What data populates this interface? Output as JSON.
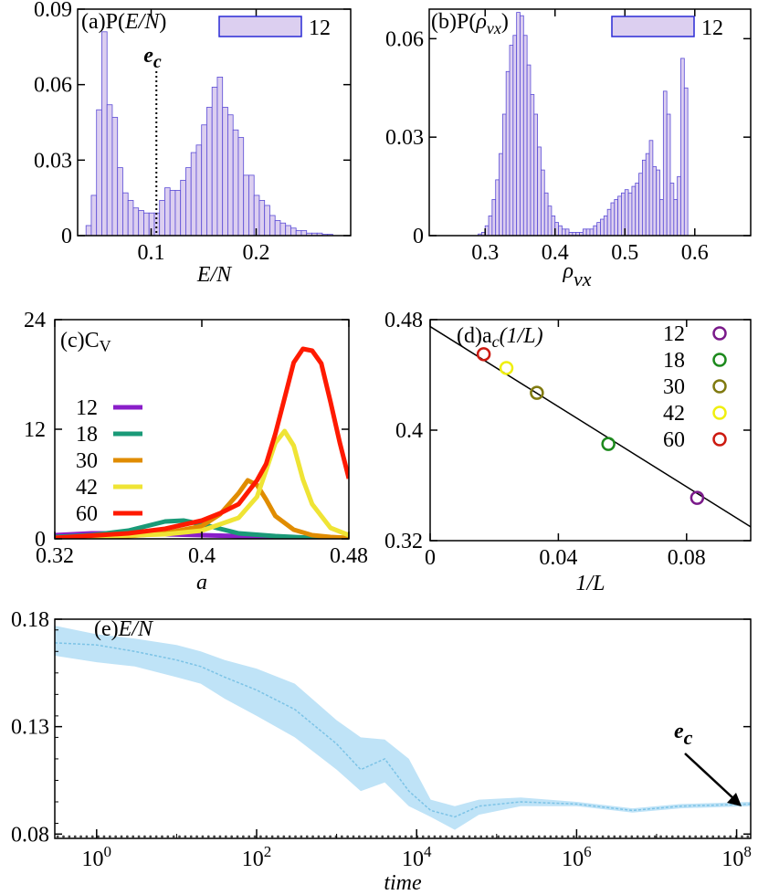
{
  "chart_data": [
    {
      "panel": "a",
      "type": "bar",
      "title_prefix": "(a)P(",
      "title_var": "E/N",
      "title_suffix": ")",
      "xlabel": "E/N",
      "xlim": [
        0.03,
        0.29
      ],
      "ylim": [
        0,
        0.09
      ],
      "xticks": [
        "0.1",
        "0.2"
      ],
      "yticks": [
        "0",
        "0.03",
        "0.06",
        "0.09"
      ],
      "legend": "12",
      "annotation": "e",
      "annotation_sub": "c",
      "ec_value": 0.105,
      "bin_start": 0.038,
      "bin_width": 0.005,
      "values": [
        0.004,
        0.016,
        0.05,
        0.081,
        0.052,
        0.047,
        0.027,
        0.017,
        0.014,
        0.011,
        0.01,
        0.009,
        0.009,
        0.009,
        0.014,
        0.019,
        0.018,
        0.018,
        0.022,
        0.027,
        0.033,
        0.036,
        0.044,
        0.051,
        0.059,
        0.063,
        0.051,
        0.048,
        0.042,
        0.039,
        0.024,
        0.024,
        0.016,
        0.014,
        0.012,
        0.008,
        0.006,
        0.005,
        0.004,
        0.003,
        0.002,
        0.002,
        0.001,
        0.001,
        0.001,
        0.0005,
        0.0005
      ]
    },
    {
      "panel": "b",
      "type": "bar",
      "title_prefix": "(b)P(",
      "title_var": "ρ",
      "title_sub": "vx",
      "title_suffix": ")",
      "xlabel": "ρ",
      "xlabel_sub": "vx",
      "xlim": [
        0.22,
        0.68
      ],
      "ylim": [
        0,
        0.069
      ],
      "xticks": [
        "0.3",
        "0.4",
        "0.5",
        "0.6"
      ],
      "yticks": [
        "0",
        "0.03",
        "0.06"
      ],
      "legend": "12",
      "bin_start": 0.29,
      "bin_width": 0.005,
      "values": [
        0.0005,
        0.001,
        0.003,
        0.006,
        0.011,
        0.017,
        0.025,
        0.037,
        0.05,
        0.058,
        0.061,
        0.068,
        0.067,
        0.061,
        0.052,
        0.043,
        0.037,
        0.027,
        0.02,
        0.013,
        0.009,
        0.006,
        0.004,
        0.003,
        0.002,
        0.002,
        0.001,
        0.001,
        0.001,
        0.001,
        0.002,
        0.002,
        0.002,
        0.003,
        0.004,
        0.005,
        0.006,
        0.008,
        0.01,
        0.011,
        0.012,
        0.013,
        0.014,
        0.013,
        0.015,
        0.016,
        0.019,
        0.023,
        0.025,
        0.029,
        0.021,
        0.02,
        0.011,
        0.044,
        0.037,
        0.016,
        0.011,
        0.018,
        0.054,
        0.045
      ]
    },
    {
      "panel": "c",
      "type": "line",
      "title": "(c)C",
      "title_sub": "V",
      "xlabel": "a",
      "xlim": [
        0.32,
        0.48
      ],
      "ylim": [
        0,
        24
      ],
      "xticks": [
        "0.32",
        "0.4",
        "0.48"
      ],
      "yticks": [
        "0",
        "12",
        "24"
      ],
      "series": [
        {
          "name": "12",
          "color": "#8a1ec9",
          "x": [
            0.32,
            0.34,
            0.36,
            0.38,
            0.4,
            0.42,
            0.44,
            0.46,
            0.48
          ],
          "y": [
            0.4,
            0.6,
            0.6,
            0.5,
            0.4,
            0.3,
            0.2,
            0.1,
            0.05
          ]
        },
        {
          "name": "18",
          "color": "#1a9a78",
          "x": [
            0.32,
            0.34,
            0.36,
            0.37,
            0.38,
            0.39,
            0.4,
            0.41,
            0.42,
            0.44,
            0.46,
            0.48
          ],
          "y": [
            0.2,
            0.4,
            0.9,
            1.4,
            1.9,
            2.0,
            1.6,
            1.1,
            0.6,
            0.3,
            0.1,
            0.05
          ]
        },
        {
          "name": "30",
          "color": "#e08c00",
          "x": [
            0.32,
            0.36,
            0.38,
            0.4,
            0.41,
            0.42,
            0.425,
            0.43,
            0.435,
            0.44,
            0.45,
            0.46,
            0.47,
            0.48
          ],
          "y": [
            0.1,
            0.3,
            0.6,
            1.4,
            2.7,
            5.0,
            6.4,
            5.9,
            4.3,
            2.5,
            1.0,
            0.4,
            0.2,
            0.1
          ]
        },
        {
          "name": "42",
          "color": "#efe435",
          "x": [
            0.32,
            0.38,
            0.4,
            0.42,
            0.43,
            0.435,
            0.44,
            0.445,
            0.45,
            0.455,
            0.46,
            0.47,
            0.48
          ],
          "y": [
            0.1,
            0.5,
            0.9,
            2.3,
            4.6,
            7.5,
            10.5,
            11.8,
            10.2,
            6.5,
            3.8,
            1.2,
            0.4
          ]
        },
        {
          "name": "60",
          "color": "#ff1a00",
          "x": [
            0.32,
            0.36,
            0.38,
            0.4,
            0.41,
            0.42,
            0.43,
            0.435,
            0.44,
            0.445,
            0.45,
            0.455,
            0.46,
            0.465,
            0.47,
            0.475,
            0.48
          ],
          "y": [
            0.1,
            0.6,
            1.1,
            2.0,
            2.8,
            3.8,
            6.4,
            8.2,
            11.5,
            15.4,
            19.3,
            20.8,
            20.6,
            19.2,
            15.0,
            10.6,
            6.6
          ]
        }
      ]
    },
    {
      "panel": "d",
      "type": "scatter",
      "title": "(d)a",
      "title_sub": "c",
      "title_suffix": "(1/L)",
      "xlabel": "1/L",
      "xlim": [
        0,
        0.1
      ],
      "ylim": [
        0.32,
        0.48
      ],
      "xticks": [
        "0",
        "0.04",
        "0.08"
      ],
      "yticks": [
        "0.32",
        "0.4",
        "0.48"
      ],
      "fit_line": {
        "x": [
          0,
          0.1
        ],
        "y": [
          0.475,
          0.33
        ]
      },
      "series": [
        {
          "name": "12",
          "color": "#7a1a8a",
          "x": 0.0833,
          "y": 0.351
        },
        {
          "name": "18",
          "color": "#1d8a1d",
          "x": 0.0556,
          "y": 0.39
        },
        {
          "name": "30",
          "color": "#807a10",
          "x": 0.0333,
          "y": 0.427
        },
        {
          "name": "42",
          "color": "#efef10",
          "x": 0.0238,
          "y": 0.445
        },
        {
          "name": "60",
          "color": "#cc1a10",
          "x": 0.0167,
          "y": 0.455
        }
      ]
    },
    {
      "panel": "e",
      "type": "area",
      "title_prefix": "(e)",
      "title_var": "E/N",
      "xlabel": "time",
      "xscale": "log",
      "xlim": [
        0.3,
        150000000
      ],
      "ylim": [
        0.078,
        0.18
      ],
      "xticks": [
        {
          "base": "10",
          "exp": "0"
        },
        {
          "base": "10",
          "exp": "2"
        },
        {
          "base": "10",
          "exp": "4"
        },
        {
          "base": "10",
          "exp": "6"
        },
        {
          "base": "10",
          "exp": "8"
        }
      ],
      "yticks": [
        "0.08",
        "0.13",
        "0.18"
      ],
      "annotation": "e",
      "annotation_sub": "c",
      "band_color": "#bfe3f7",
      "line_color": "#7cc3e6",
      "points": [
        {
          "t": 0.3,
          "m": 0.169,
          "lo": 0.163,
          "hi": 0.177
        },
        {
          "t": 1,
          "m": 0.168,
          "lo": 0.16,
          "hi": 0.173
        },
        {
          "t": 3,
          "m": 0.165,
          "lo": 0.158,
          "hi": 0.171
        },
        {
          "t": 10,
          "m": 0.161,
          "lo": 0.153,
          "hi": 0.168
        },
        {
          "t": 20,
          "m": 0.158,
          "lo": 0.15,
          "hi": 0.165
        },
        {
          "t": 40,
          "m": 0.153,
          "lo": 0.143,
          "hi": 0.161
        },
        {
          "t": 100,
          "m": 0.147,
          "lo": 0.135,
          "hi": 0.157
        },
        {
          "t": 300,
          "m": 0.138,
          "lo": 0.125,
          "hi": 0.15
        },
        {
          "t": 1000,
          "m": 0.122,
          "lo": 0.11,
          "hi": 0.133
        },
        {
          "t": 2000,
          "m": 0.11,
          "lo": 0.1,
          "hi": 0.125
        },
        {
          "t": 4000,
          "m": 0.115,
          "lo": 0.104,
          "hi": 0.124
        },
        {
          "t": 8000,
          "m": 0.1,
          "lo": 0.093,
          "hi": 0.115
        },
        {
          "t": 15000,
          "m": 0.091,
          "lo": 0.088,
          "hi": 0.096
        },
        {
          "t": 30000,
          "m": 0.088,
          "lo": 0.082,
          "hi": 0.093
        },
        {
          "t": 60000,
          "m": 0.093,
          "lo": 0.089,
          "hi": 0.096
        },
        {
          "t": 200000,
          "m": 0.095,
          "lo": 0.093,
          "hi": 0.097
        },
        {
          "t": 1000000,
          "m": 0.094,
          "lo": 0.093,
          "hi": 0.095
        },
        {
          "t": 5000000,
          "m": 0.091,
          "lo": 0.09,
          "hi": 0.092
        },
        {
          "t": 20000000,
          "m": 0.093,
          "lo": 0.092,
          "hi": 0.094
        },
        {
          "t": 150000000,
          "m": 0.094,
          "lo": 0.093,
          "hi": 0.095
        }
      ]
    }
  ]
}
